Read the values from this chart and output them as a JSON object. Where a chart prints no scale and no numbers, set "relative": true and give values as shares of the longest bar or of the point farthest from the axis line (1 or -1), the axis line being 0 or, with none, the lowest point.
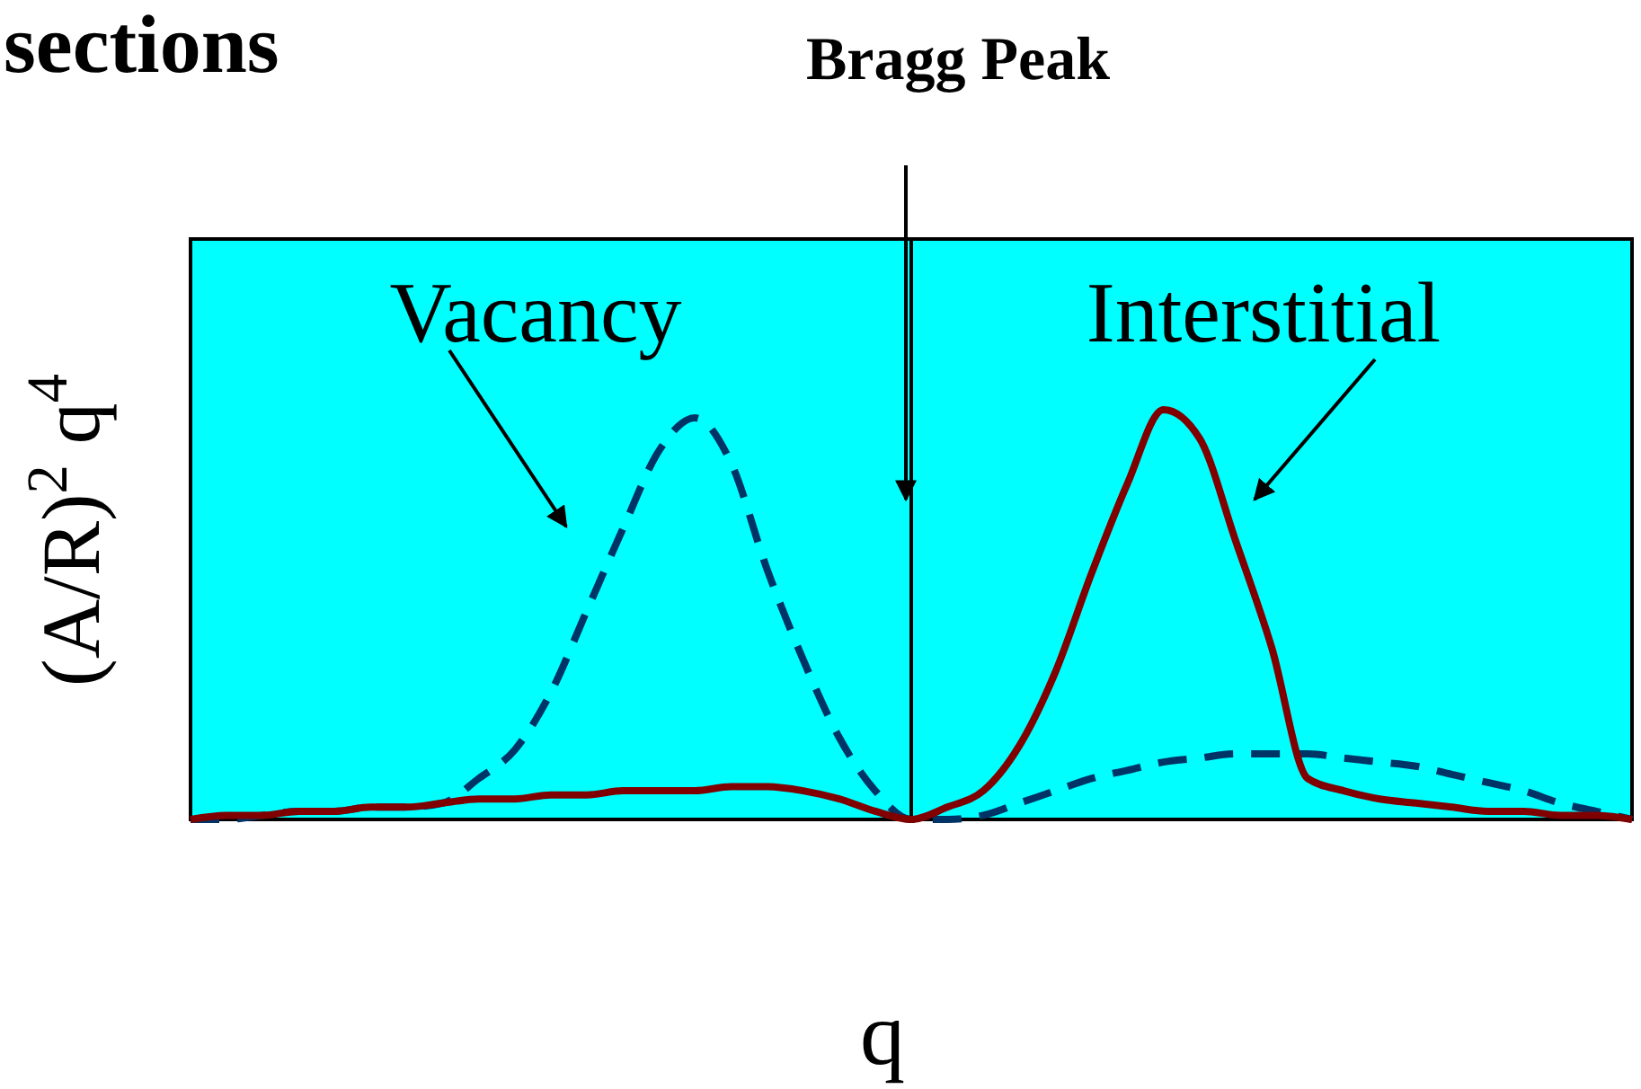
{
  "chart_data": {
    "type": "line",
    "title": "sections",
    "xlabel": "q",
    "ylabel": "(A/R)$^{2}$ q$^{4}$",
    "relative": true,
    "annotations": [
      "Bragg Peak"
    ],
    "categories": [
      null,
      null,
      null,
      null,
      null,
      null,
      null,
      null,
      null,
      null,
      null,
      null,
      null,
      null,
      null,
      null,
      null,
      null,
      null,
      null,
      null,
      null,
      null,
      null,
      null,
      null,
      null,
      null,
      null,
      null,
      null,
      null,
      null,
      null,
      null,
      null,
      null,
      null,
      null,
      null,
      null
    ],
    "series": [
      {
        "name": "Vacancy",
        "color": "#003366",
        "line_style": "dashed",
        "values": [
          0,
          0,
          0.01,
          0.02,
          0.02,
          0.03,
          0.03,
          0.04,
          0.1,
          0.17,
          0.31,
          0.51,
          0.71,
          0.9,
          0.98,
          0.87,
          0.61,
          0.39,
          0.2,
          0.07,
          0,
          0,
          0.01,
          0.04,
          0.07,
          0.1,
          0.12,
          0.14,
          0.15,
          0.16,
          0.16,
          0.16,
          0.15,
          0.14,
          0.13,
          0.11,
          0.09,
          0.07,
          0.04,
          0.02,
          0
        ]
      },
      {
        "name": "Interstitial",
        "color": "#800000",
        "line_style": "solid",
        "values": [
          0,
          0.01,
          0.01,
          0.02,
          0.02,
          0.03,
          0.03,
          0.04,
          0.05,
          0.05,
          0.06,
          0.06,
          0.07,
          0.07,
          0.07,
          0.08,
          0.08,
          0.07,
          0.05,
          0.02,
          0,
          0.03,
          0.07,
          0.18,
          0.36,
          0.6,
          0.82,
          1,
          0.93,
          0.68,
          0.42,
          0.1,
          0.07,
          0.05,
          0.04,
          0.03,
          0.02,
          0.02,
          0.01,
          0.01,
          0
        ]
      }
    ]
  }
}
